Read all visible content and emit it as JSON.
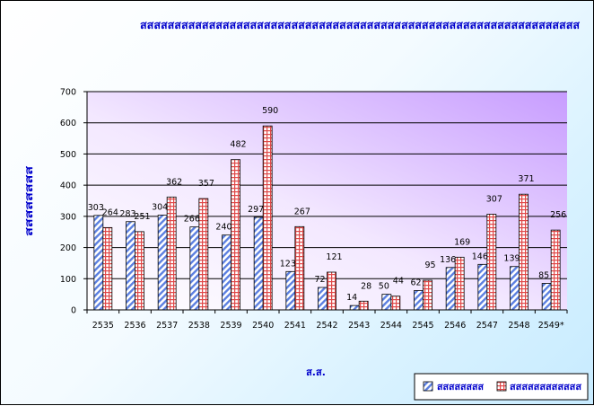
{
  "chart_data": {
    "type": "bar",
    "title": "สสสสสสสสสสสสสสสสสสสสสสสสสสสสสสสสสสสสสสสสสสสสสสสสสสสสสสสสสสสสสสสส",
    "xlabel": "ส.ส.",
    "ylabel": "สสสสสสสส",
    "ylim": [
      0,
      700
    ],
    "yticks": [
      "0",
      "100",
      "200",
      "300",
      "400",
      "500",
      "600",
      "700"
    ],
    "categories": [
      "2535",
      "2536",
      "2537",
      "2538",
      "2539",
      "2540",
      "2541",
      "2542",
      "2543",
      "2544",
      "2545",
      "2546",
      "2547",
      "2548",
      "2549*"
    ],
    "series": [
      {
        "name": "สสสสสสสส",
        "color": "#5b7fe0",
        "pattern": "diagonal-stripes",
        "values": [
          303,
          283,
          304,
          266,
          240,
          297,
          123,
          72,
          14,
          50,
          62,
          136,
          146,
          139,
          85
        ]
      },
      {
        "name": "สสสสสสสสสสสส",
        "color": "#e04848",
        "pattern": "crosshatch",
        "values": [
          264,
          251,
          362,
          357,
          482,
          590,
          267,
          121,
          28,
          44,
          95,
          169,
          307,
          371,
          256
        ]
      }
    ],
    "data_labels": [
      [
        "303",
        "283",
        "304",
        "266",
        "240",
        "297",
        "123",
        "72",
        "14",
        "50",
        "62",
        "136",
        "146",
        "139",
        "85"
      ],
      [
        "264",
        "251",
        "362",
        "357",
        "482",
        "590",
        "267",
        "121",
        "28",
        "44",
        "95",
        "169",
        "307",
        "371",
        "256"
      ]
    ],
    "grid": true,
    "legend": "bottom-right",
    "title_color": "#0000cc",
    "plot_gradient": [
      "#ffffff",
      "#c79cff"
    ]
  }
}
